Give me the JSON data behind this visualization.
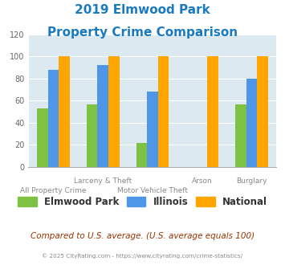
{
  "title_line1": "2019 Elmwood Park",
  "title_line2": "Property Crime Comparison",
  "title_color": "#1a7abf",
  "elmwood_park": [
    53,
    57,
    22,
    0,
    57
  ],
  "illinois": [
    88,
    92,
    68,
    0,
    80
  ],
  "national": [
    100,
    100,
    100,
    100,
    100
  ],
  "color_elmwood": "#7dc242",
  "color_illinois": "#4d96e8",
  "color_national": "#ffa500",
  "ylim": [
    0,
    120
  ],
  "yticks": [
    0,
    20,
    40,
    60,
    80,
    100,
    120
  ],
  "background_color": "#dce9f0",
  "legend_labels": [
    "Elmwood Park",
    "Illinois",
    "National"
  ],
  "cat_top": [
    "",
    "Larceny & Theft",
    "",
    "Arson",
    "Burglary"
  ],
  "cat_bot": [
    "All Property Crime",
    "Motor Vehicle Theft",
    "",
    "",
    ""
  ],
  "footnote": "Compared to U.S. average. (U.S. average equals 100)",
  "copyright": "© 2025 CityRating.com - https://www.cityrating.com/crime-statistics/",
  "footnote_color": "#993300",
  "copyright_color": "#888888",
  "bar_width": 0.22,
  "group_positions": [
    0,
    1,
    2,
    3,
    4
  ]
}
